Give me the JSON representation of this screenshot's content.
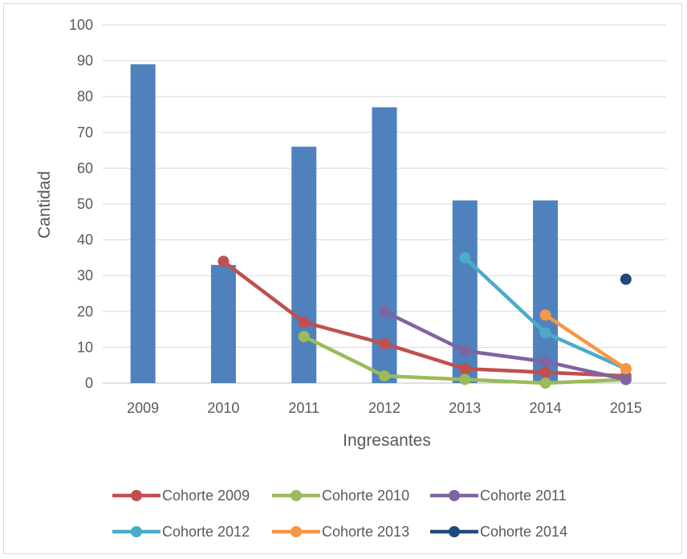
{
  "chart_data": {
    "type": "bar",
    "title": "",
    "xlabel": "Ingresantes",
    "ylabel": "Cantidad",
    "ylim": [
      0,
      100
    ],
    "yticks": [
      0,
      10,
      20,
      30,
      40,
      50,
      60,
      70,
      80,
      90,
      100
    ],
    "grid": true,
    "legend_position": "bottom",
    "categories": [
      "2009",
      "2010",
      "2011",
      "2012",
      "2013",
      "2014",
      "2015"
    ],
    "bar_series": {
      "values": [
        89,
        33,
        66,
        77,
        51,
        51,
        null
      ],
      "color": "#4f81bd"
    },
    "line_series": [
      {
        "name": "Cohorte 2009",
        "color": "#c0504d",
        "values": [
          null,
          34,
          17,
          11,
          4,
          3,
          2
        ]
      },
      {
        "name": "Cohorte 2010",
        "color": "#9bbb59",
        "values": [
          null,
          null,
          13,
          2,
          1,
          0,
          1
        ]
      },
      {
        "name": "Cohorte 2011",
        "color": "#8064a2",
        "values": [
          null,
          null,
          null,
          20,
          9,
          6,
          1
        ]
      },
      {
        "name": "Cohorte 2012",
        "color": "#4bacc6",
        "values": [
          null,
          null,
          null,
          null,
          35,
          14,
          4
        ]
      },
      {
        "name": "Cohorte 2013",
        "color": "#f79646",
        "values": [
          null,
          null,
          null,
          null,
          null,
          19,
          4
        ]
      },
      {
        "name": "Cohorte 2014",
        "color": "#1f497d",
        "values": [
          null,
          null,
          null,
          null,
          null,
          null,
          29
        ]
      }
    ]
  }
}
